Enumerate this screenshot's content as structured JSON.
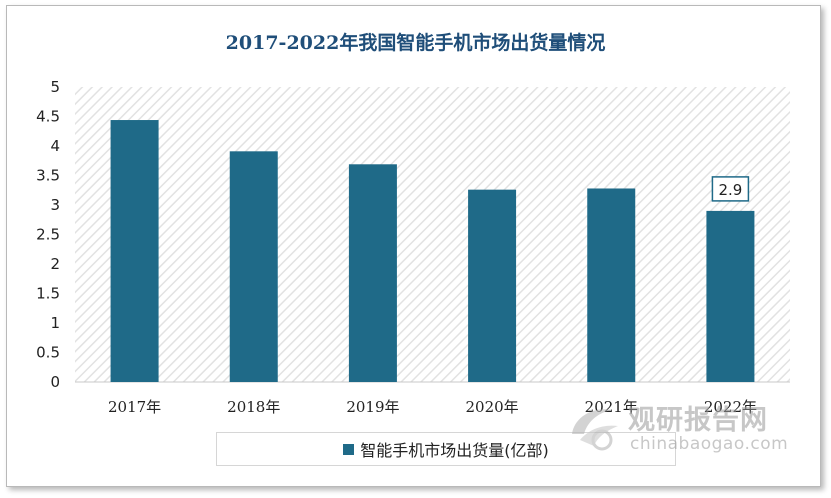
{
  "chart_data": {
    "type": "bar",
    "title": "2017-2022年我国智能手机市场出货量情况",
    "categories": [
      "2017年",
      "2018年",
      "2019年",
      "2020年",
      "2021年",
      "2022年"
    ],
    "series": [
      {
        "name": "智能手机市场出货量(亿部)",
        "values": [
          4.44,
          3.91,
          3.69,
          3.26,
          3.28,
          2.9
        ],
        "color": "#1f6a88"
      }
    ],
    "data_labels": {
      "2022年": "2.9"
    },
    "y_ticks": [
      "0",
      "0.5",
      "1",
      "1.5",
      "2",
      "2.5",
      "3",
      "3.5",
      "4",
      "4.5",
      "5"
    ],
    "ylim": [
      0,
      5
    ],
    "grid": "hatched",
    "legend_position": "bottom"
  },
  "watermark": {
    "cn": "观研报告网",
    "en": "chinabaogao.com"
  }
}
